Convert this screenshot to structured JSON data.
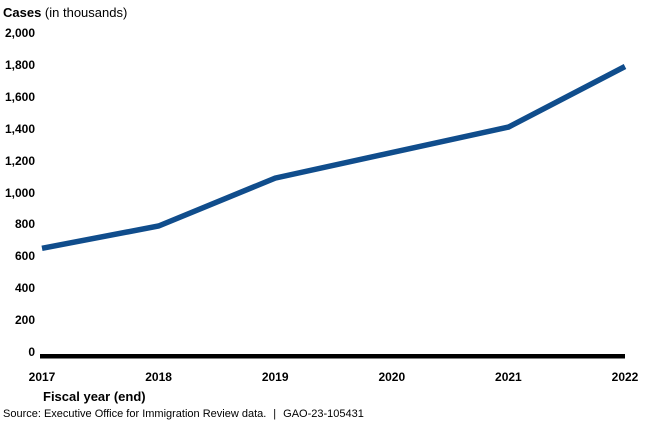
{
  "chart": {
    "title_bold": "Cases",
    "title_rest": " (in thousands)"
  },
  "chart_data": {
    "type": "line",
    "title": "Cases (in thousands)",
    "xlabel": "Fiscal year (end)",
    "ylabel": "Cases (in thousands)",
    "x": [
      2017,
      2018,
      2019,
      2020,
      2021,
      2022
    ],
    "x_tick_labels": [
      "2017",
      "2018",
      "2019",
      "2020",
      "2021",
      "2022"
    ],
    "values": [
      650,
      790,
      1090,
      1250,
      1410,
      1790
    ],
    "ylim": [
      0,
      2000
    ],
    "ytick_step": 200,
    "y_tick_labels": [
      "0",
      "200",
      "400",
      "600",
      "800",
      "1,000",
      "1,200",
      "1,400",
      "1,600",
      "1,800",
      "2,000"
    ],
    "grid": false,
    "legend": false,
    "line_color": "#104D8C",
    "axis_color": "#000000"
  },
  "footer": {
    "source": "Source: Executive Office for Immigration Review data.",
    "separator": "|",
    "report_number": "GAO-23-105431"
  }
}
